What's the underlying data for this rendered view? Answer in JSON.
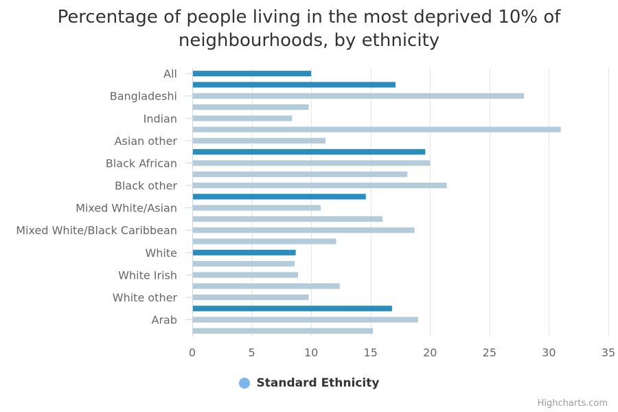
{
  "chart_data": {
    "type": "bar",
    "orientation": "horizontal",
    "title_lines": [
      "Percentage of people living in the most deprived 10% of",
      "neighbourhoods, by ethnicity"
    ],
    "xlim": [
      0,
      35
    ],
    "ticks": [
      0,
      5,
      10,
      15,
      20,
      25,
      30,
      35
    ],
    "grid": true,
    "legend_placement": "bottom-center",
    "series": [
      {
        "name": "Standard Ethnicity",
        "legend_color": "#7cb5ec",
        "bars": [
          {
            "value": 10.0,
            "highlight": true
          },
          {
            "value": 17.1,
            "highlight": true
          },
          {
            "value": 27.9,
            "highlight": false
          },
          {
            "value": 9.8,
            "highlight": false
          },
          {
            "value": 8.4,
            "highlight": false
          },
          {
            "value": 31.0,
            "highlight": false
          },
          {
            "value": 11.2,
            "highlight": false
          },
          {
            "value": 19.6,
            "highlight": true
          },
          {
            "value": 20.0,
            "highlight": false
          },
          {
            "value": 18.1,
            "highlight": false
          },
          {
            "value": 21.4,
            "highlight": false
          },
          {
            "value": 14.6,
            "highlight": true
          },
          {
            "value": 10.8,
            "highlight": false
          },
          {
            "value": 16.0,
            "highlight": false
          },
          {
            "value": 18.7,
            "highlight": false
          },
          {
            "value": 12.1,
            "highlight": false
          },
          {
            "value": 8.7,
            "highlight": true
          },
          {
            "value": 8.6,
            "highlight": false
          },
          {
            "value": 8.9,
            "highlight": false
          },
          {
            "value": 12.4,
            "highlight": false
          },
          {
            "value": 9.8,
            "highlight": false
          },
          {
            "value": 16.8,
            "highlight": true
          },
          {
            "value": 19.0,
            "highlight": false
          },
          {
            "value": 15.2,
            "highlight": false
          }
        ]
      }
    ],
    "category_labels": [
      {
        "label": "All",
        "row": 0
      },
      {
        "label": "Bangladeshi",
        "row": 2
      },
      {
        "label": "Indian",
        "row": 4
      },
      {
        "label": "Asian other",
        "row": 6
      },
      {
        "label": "Black African",
        "row": 8
      },
      {
        "label": "Black other",
        "row": 10
      },
      {
        "label": "Mixed White/Asian",
        "row": 12
      },
      {
        "label": "Mixed White/Black Caribbean",
        "row": 14
      },
      {
        "label": "White",
        "row": 16
      },
      {
        "label": "White Irish",
        "row": 18
      },
      {
        "label": "White other",
        "row": 20
      },
      {
        "label": "Arab",
        "row": 22
      }
    ],
    "colors": {
      "highlight": "#2b8cbe",
      "normal": "#b4cbd9",
      "grid": "#e6e6e6",
      "axis": "#ccd6eb"
    }
  },
  "legend": {
    "label": "Standard Ethnicity"
  },
  "credits": "Highcharts.com"
}
